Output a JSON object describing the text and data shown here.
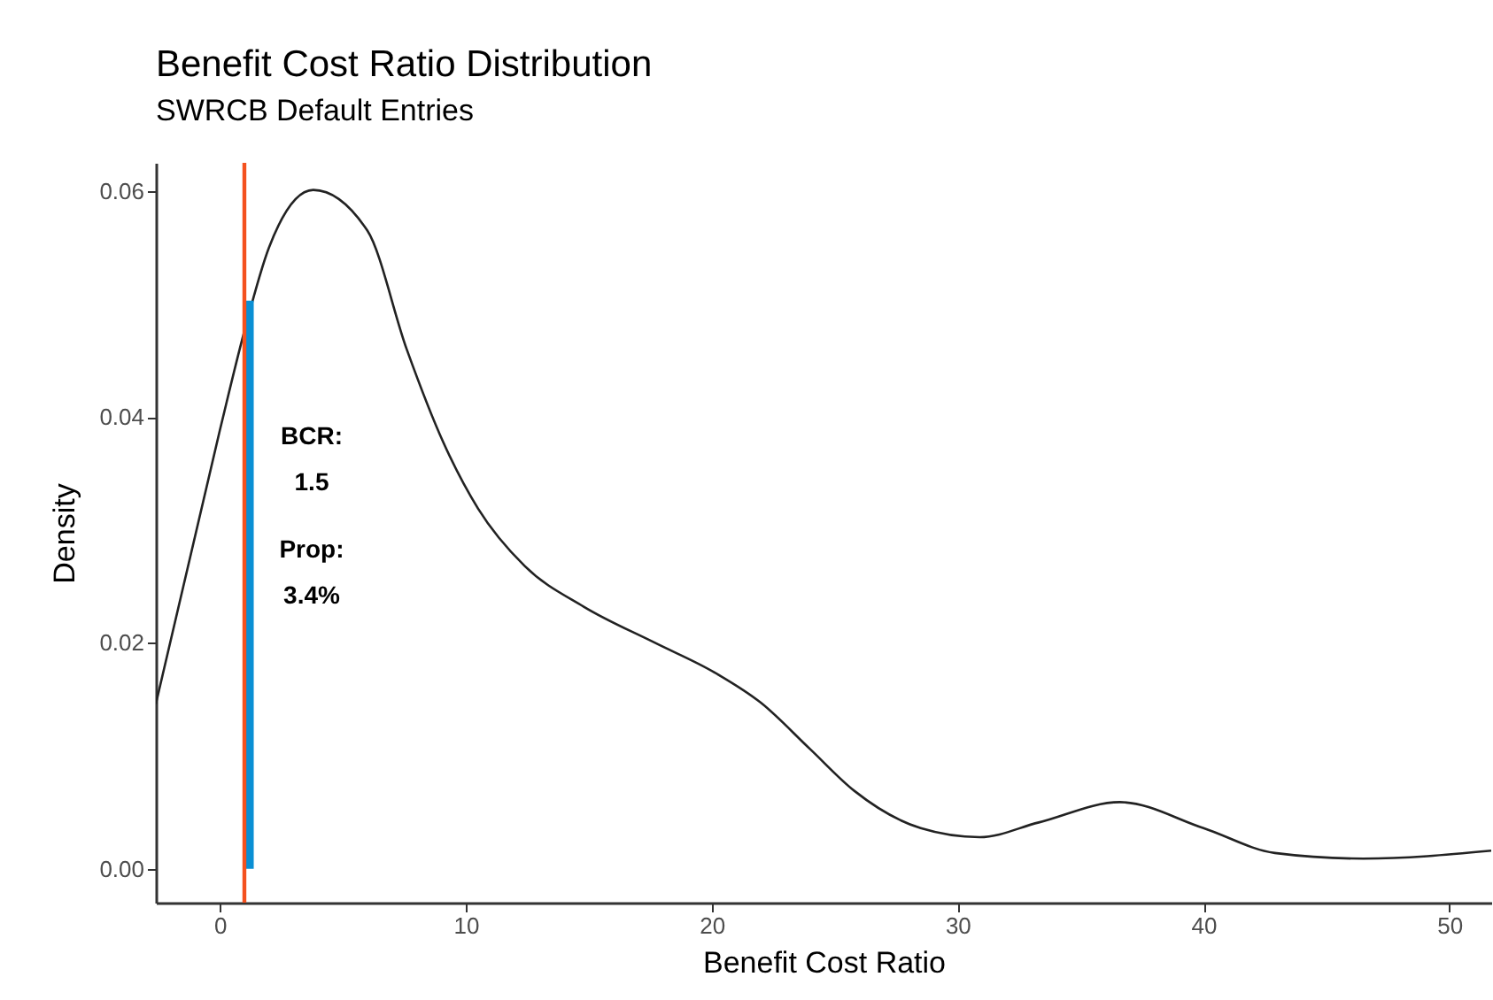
{
  "chart_data": {
    "type": "line",
    "title": "Benefit Cost Ratio Distribution",
    "subtitle": "SWRCB Default Entries",
    "xlabel": "Benefit Cost Ratio",
    "ylabel": "Density",
    "xlim": [
      -2.6,
      51.7
    ],
    "ylim": [
      -0.003,
      0.0625
    ],
    "xticks": [
      0,
      10,
      20,
      30,
      40,
      50
    ],
    "yticks": [
      {
        "value": 0,
        "label": "0.00"
      },
      {
        "value": 0.02,
        "label": "0.02"
      },
      {
        "value": 0.04,
        "label": "0.04"
      },
      {
        "value": 0.06,
        "label": "0.06"
      }
    ],
    "grid": false,
    "series": [
      {
        "color": "#222222",
        "x": [
          -2.6,
          0,
          1,
          2,
          3.8,
          6,
          7.6,
          9.1,
          10.5,
          12.4,
          14.8,
          17.7,
          20.1,
          22.0,
          24.0,
          25.8,
          28.5,
          30.9,
          33.3,
          36.6,
          40.0,
          42.9,
          46.5,
          51.7
        ],
        "values": [
          0.0146,
          0.0388,
          0.0476,
          0.055,
          0.0601,
          0.0565,
          0.046,
          0.0377,
          0.0319,
          0.0268,
          0.0232,
          0.02,
          0.0174,
          0.0147,
          0.0106,
          0.0069,
          0.0036,
          0.0028,
          0.0041,
          0.0059,
          0.0036,
          0.0014,
          0.0009,
          0.0016
        ]
      },
      {
        "color": "#0a8fd4",
        "x": [
          1.2,
          1.2
        ],
        "values": [
          0,
          0.0503
        ]
      }
    ],
    "ref_lines": [
      {
        "axis": "x",
        "value": 1,
        "color": "#f4511e"
      }
    ],
    "annotations": [
      "BCR:\n1.5",
      "Prop:\n3.4%"
    ]
  }
}
